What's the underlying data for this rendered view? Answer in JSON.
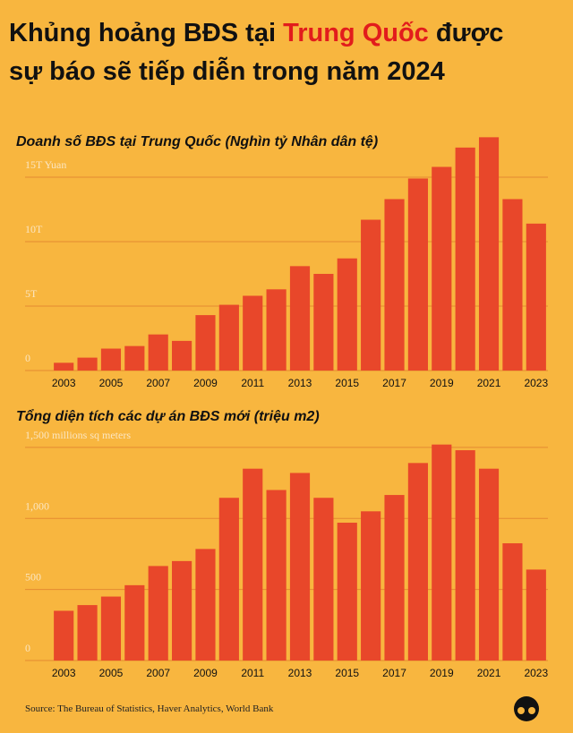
{
  "header": {
    "title_line1_before": "Khủng hoảng BĐS tại ",
    "title_line1_highlight": "Trung Quốc",
    "title_line1_after": " được",
    "title_line2": "sự báo sẽ tiếp diễn trong năm 2024"
  },
  "chart_data": [
    {
      "type": "bar",
      "title": "Doanh số BĐS tại Trung Quốc (Nghìn tỷ Nhân dân tệ)",
      "categories": [
        "2003",
        null,
        "2005",
        null,
        "2007",
        null,
        "2009",
        null,
        "2011",
        null,
        "2013",
        null,
        "2015",
        null,
        "2017",
        null,
        "2019",
        null,
        "2021",
        null,
        "2023"
      ],
      "values": [
        0.6,
        1.0,
        1.7,
        1.9,
        2.8,
        2.3,
        4.3,
        5.1,
        5.8,
        6.3,
        8.1,
        7.5,
        8.7,
        11.7,
        13.3,
        14.9,
        15.8,
        17.3,
        18.1,
        13.3,
        11.4
      ],
      "color": "#e8472a",
      "ylim": [
        0,
        18.5
      ],
      "yticks": [
        0,
        {
          "value": 5,
          "label": "5T"
        },
        {
          "value": 10,
          "label": "10T"
        },
        {
          "value": 15,
          "label": "15T Yuan"
        }
      ],
      "grid": true
    },
    {
      "type": "bar",
      "title": "Tổng diện tích các dự án BĐS mới (triệu m2)",
      "categories": [
        "2003",
        null,
        "2005",
        null,
        "2007",
        null,
        "2009",
        null,
        "2011",
        null,
        "2013",
        null,
        "2015",
        null,
        "2017",
        null,
        "2019",
        null,
        "2021",
        null,
        "2023"
      ],
      "values": [
        350,
        390,
        450,
        530,
        665,
        700,
        785,
        1145,
        1350,
        1200,
        1320,
        1145,
        970,
        1050,
        1165,
        1390,
        1520,
        1480,
        1350,
        825,
        640
      ],
      "color": "#e8472a",
      "ylim": [
        0,
        1600
      ],
      "yticks": [
        0,
        500,
        {
          "value": 1000,
          "label": "1,000"
        },
        {
          "value": 1500,
          "label": "1,500 millions sq meters"
        }
      ],
      "grid": true
    }
  ],
  "source": "Source: The Bureau of Statistics, Haver Analytics, World Bank"
}
